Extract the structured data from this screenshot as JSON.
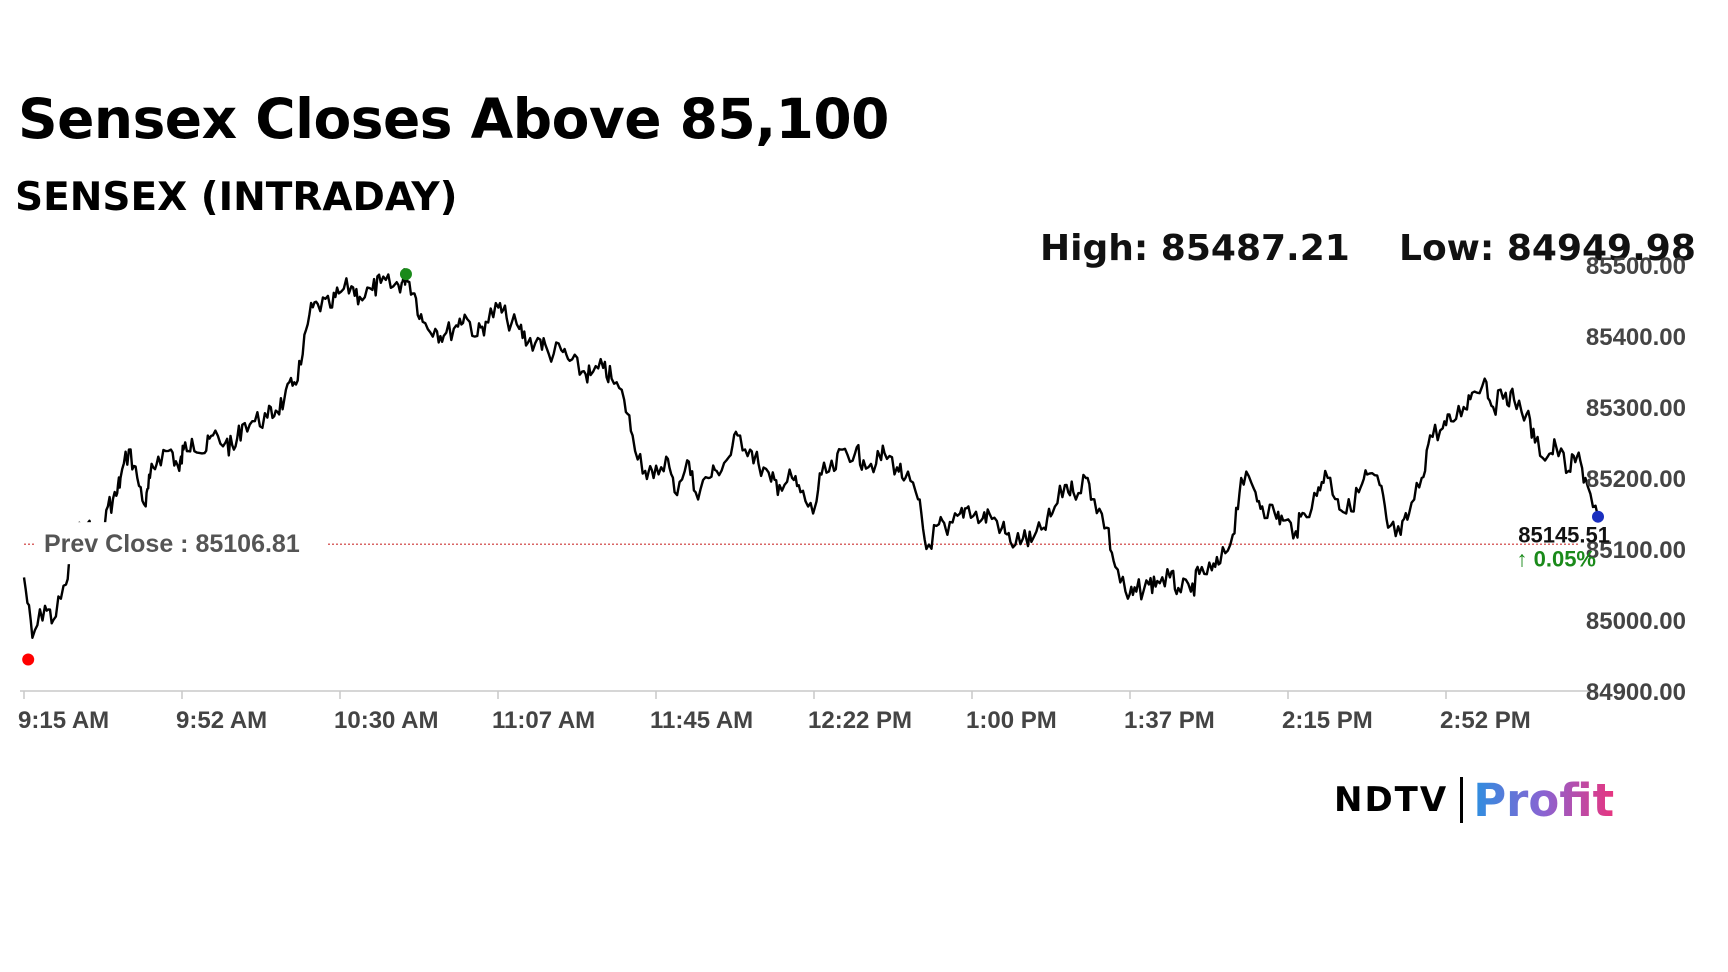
{
  "headline": "Sensex Closes Above 85,100",
  "stats": {
    "high_label": "High: 85487.21",
    "low_label": "Low: 84949.98"
  },
  "logo": {
    "ndtv": "NDTV",
    "profit": "Profit"
  },
  "colors": {
    "line": "#000000",
    "prev_close": "#cc3333",
    "high_marker": "#1a8a1a",
    "low_marker": "#ff0000",
    "last_marker": "#1a2fbf",
    "change_up": "#1a8a1a",
    "axis": "#c8c8c8"
  },
  "chart_data": {
    "type": "line",
    "title": "SENSEX (INTRADAY)",
    "ylim": [
      84900,
      85500
    ],
    "y_ticks": [
      84900,
      85000,
      85100,
      85200,
      85300,
      85400,
      85500
    ],
    "y_tick_labels": [
      "84900.00",
      "85000.00",
      "85100.00",
      "85200.00",
      "85300.00",
      "85400.00",
      "85500.00"
    ],
    "x_ticks": [
      "9:15 AM",
      "9:52 AM",
      "10:30 AM",
      "11:07 AM",
      "11:45 AM",
      "12:22 PM",
      "1:00 PM",
      "1:37 PM",
      "2:15 PM",
      "2:52 PM"
    ],
    "x_range_minutes": [
      0,
      375
    ],
    "grid": false,
    "prev_close": {
      "value": 85106.81,
      "label": "Prev Close : 85106.81"
    },
    "last": {
      "value": 85145.51,
      "label": "85145.51",
      "change_label": "↑ 0.05%"
    },
    "high_point": {
      "minute": 91,
      "value": 85487.21
    },
    "low_point": {
      "minute": 1,
      "value": 84949.98
    },
    "series": [
      {
        "x": [
          0,
          2,
          5,
          7,
          10,
          12,
          15,
          18,
          20,
          22,
          23,
          25,
          27,
          29,
          30,
          32,
          35,
          37,
          38,
          40,
          43,
          45,
          48,
          50,
          52,
          55,
          58,
          60,
          62,
          64,
          66,
          68,
          70,
          73,
          75,
          78,
          80,
          83,
          85,
          88,
          90,
          91,
          93,
          95,
          98,
          100,
          103,
          105,
          108,
          110,
          113,
          115,
          118,
          120,
          123,
          125,
          128,
          130,
          133,
          135,
          138,
          140,
          143,
          145,
          148,
          150,
          153,
          155,
          158,
          160,
          163,
          165,
          168,
          170,
          173,
          175,
          178,
          180,
          183,
          185,
          188,
          190,
          193,
          195,
          198,
          200,
          203,
          205,
          208,
          210,
          213,
          215,
          218,
          220,
          223,
          225,
          228,
          230,
          233,
          235,
          238,
          240,
          243,
          245,
          248,
          250,
          253,
          255,
          258,
          260,
          263,
          265,
          268,
          270,
          273,
          275,
          278,
          280,
          283,
          285,
          288,
          290,
          293,
          295,
          298,
          300,
          303,
          305,
          308,
          310,
          313,
          315,
          318,
          320,
          323,
          325,
          328,
          330,
          333,
          335,
          338,
          340,
          343,
          345,
          348,
          350,
          353,
          355,
          358,
          360,
          363,
          365,
          368,
          370,
          372,
          375
        ],
        "values": [
          85060,
          84975,
          85020,
          85000,
          85050,
          85115,
          85135,
          85100,
          85160,
          85175,
          85200,
          85240,
          85200,
          85160,
          85200,
          85230,
          85240,
          85210,
          85240,
          85255,
          85235,
          85260,
          85250,
          85240,
          85275,
          85280,
          85285,
          85295,
          85310,
          85330,
          85360,
          85430,
          85445,
          85440,
          85460,
          85470,
          85455,
          85465,
          85475,
          85470,
          85475,
          85487,
          85460,
          85420,
          85410,
          85400,
          85415,
          85430,
          85400,
          85420,
          85440,
          85425,
          85410,
          85390,
          85395,
          85375,
          85380,
          85365,
          85350,
          85345,
          85355,
          85340,
          85310,
          85260,
          85210,
          85200,
          85230,
          85180,
          85225,
          85180,
          85200,
          85210,
          85230,
          85260,
          85240,
          85220,
          85195,
          85190,
          85200,
          85180,
          85150,
          85205,
          85210,
          85240,
          85235,
          85225,
          85220,
          85235,
          85215,
          85200,
          85170,
          85100,
          85135,
          85120,
          85150,
          85160,
          85140,
          85150,
          85130,
          85110,
          85115,
          85110,
          85130,
          85150,
          85190,
          85180,
          85200,
          85170,
          85130,
          85075,
          85030,
          85040,
          85050,
          85055,
          85060,
          85045,
          85040,
          85065,
          85070,
          85080,
          85120,
          85200,
          85185,
          85160,
          85150,
          85140,
          85125,
          85150,
          85175,
          85210,
          85170,
          85150,
          85180,
          85205,
          85190,
          85130,
          85120,
          85150,
          85200,
          85260,
          85270,
          85280,
          85300,
          85320,
          85340,
          85300,
          85320,
          85310,
          85290,
          85250,
          85230,
          85245,
          85210,
          85230,
          85200,
          85145.51
        ]
      }
    ]
  }
}
